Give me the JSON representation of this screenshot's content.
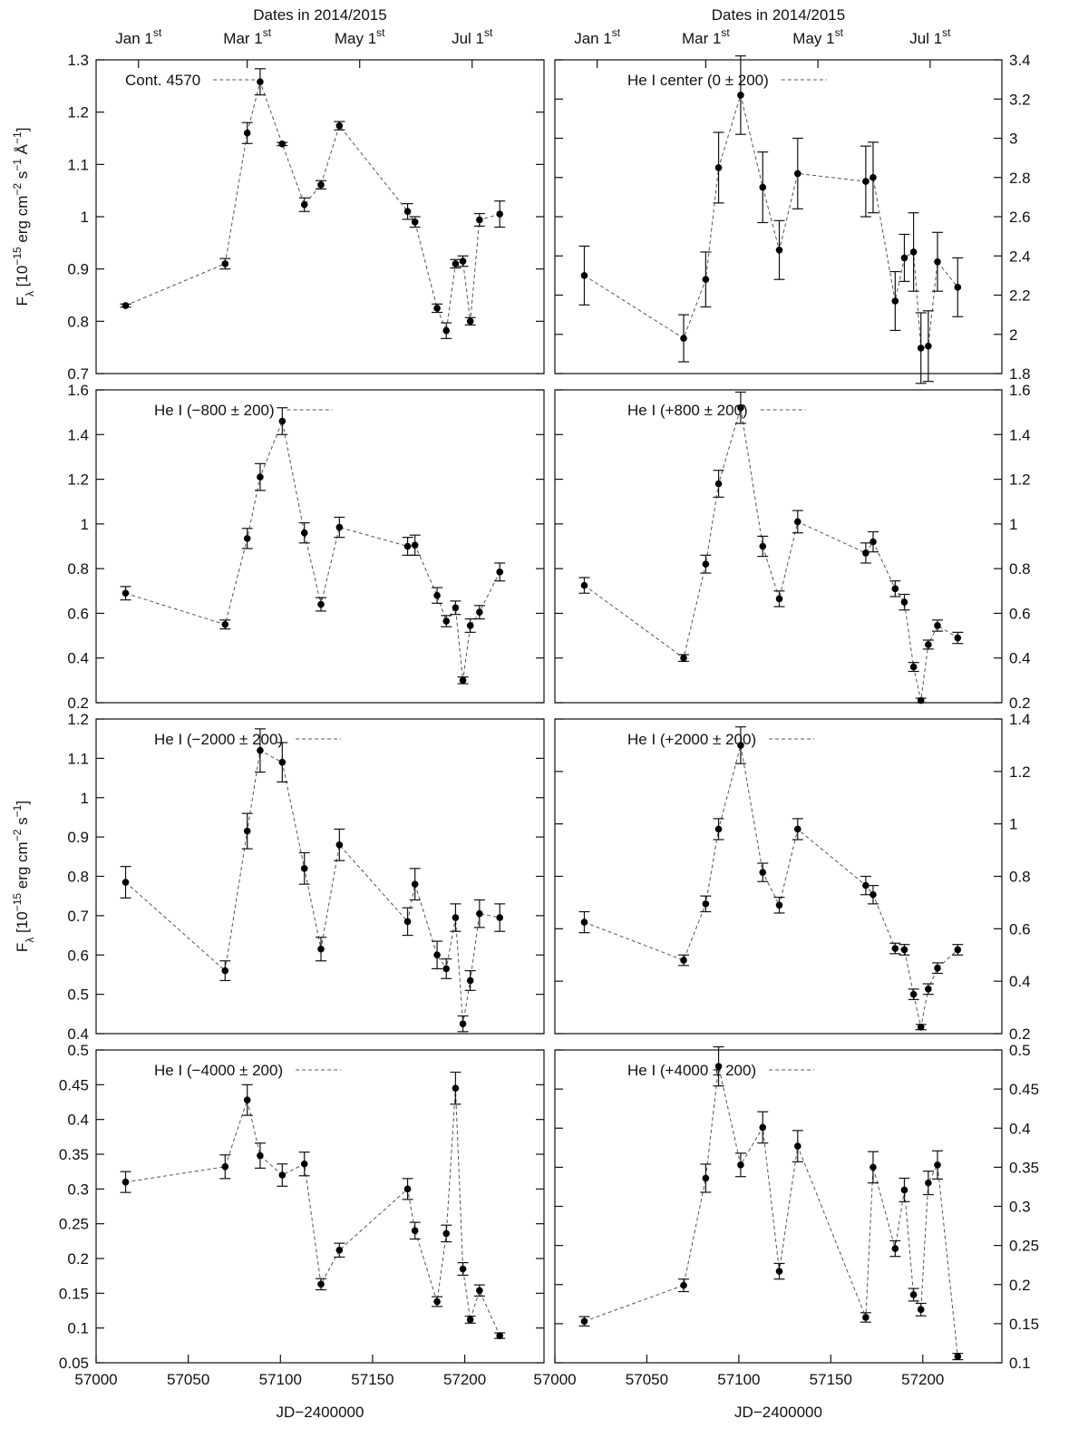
{
  "chart_data": [
    {
      "type": "line",
      "yaxis": "left",
      "xlim": [
        57000,
        57243
      ],
      "ylim": [
        0.7,
        1.3
      ],
      "yticks": [
        0.7,
        0.8,
        0.9,
        1,
        1.1,
        1.2,
        1.3
      ],
      "top_label": "Dates in 2014/2015",
      "top_ticks": [
        {
          "value": 57023,
          "label": "Jan 1",
          "sup": "st"
        },
        {
          "value": 57082,
          "label": "Mar 1",
          "sup": "st"
        },
        {
          "value": 57143,
          "label": "May 1",
          "sup": "st"
        },
        {
          "value": 57204,
          "label": "Jul 1",
          "sup": "st"
        }
      ],
      "ylabel": [
        {
          "text": "F"
        },
        {
          "text": "λ",
          "script": "sub"
        },
        {
          "text": " [10"
        },
        {
          "text": "−15",
          "script": "sup"
        },
        {
          "text": " erg cm"
        },
        {
          "text": "−2",
          "script": "sup"
        },
        {
          "text": " s"
        },
        {
          "text": "−1",
          "script": "sup"
        },
        {
          "text": " Å"
        },
        {
          "text": "−1",
          "script": "sup"
        },
        {
          "text": "]"
        }
      ],
      "x": [
        57016,
        57070,
        57082,
        57089,
        57101,
        57113,
        57122,
        57132,
        57169,
        57173,
        57185,
        57190,
        57195,
        57199,
        57203,
        57208,
        57219
      ],
      "series": [
        {
          "name": "Cont. 4570",
          "color": "#000000",
          "values": [
            0.83,
            0.91,
            1.16,
            1.258,
            1.139,
            1.023,
            1.061,
            1.174,
            1.01,
            0.99,
            0.825,
            0.782,
            0.91,
            0.915,
            0.8,
            0.994,
            1.005
          ],
          "errors": [
            0.003,
            0.01,
            0.02,
            0.025,
            0.003,
            0.013,
            0.008,
            0.008,
            0.015,
            0.01,
            0.008,
            0.015,
            0.008,
            0.01,
            0.007,
            0.012,
            0.025
          ]
        }
      ]
    },
    {
      "type": "line",
      "yaxis": "right",
      "xlim": [
        57000,
        57243
      ],
      "ylim": [
        1.8,
        3.4
      ],
      "yticks": [
        1.8,
        2,
        2.2,
        2.4,
        2.6,
        2.8,
        3,
        3.2,
        3.4
      ],
      "top_label": "Dates in 2014/2015",
      "top_ticks": [
        {
          "value": 57023,
          "label": "Jan 1",
          "sup": "st"
        },
        {
          "value": 57082,
          "label": "Mar 1",
          "sup": "st"
        },
        {
          "value": 57143,
          "label": "May 1",
          "sup": "st"
        },
        {
          "value": 57204,
          "label": "Jul 1",
          "sup": "st"
        }
      ],
      "x": [
        57016,
        57070,
        57082,
        57089,
        57101,
        57113,
        57122,
        57132,
        57169,
        57173,
        57185,
        57190,
        57195,
        57199,
        57203,
        57208,
        57219
      ],
      "series": [
        {
          "name": "He I center (0 ± 200)",
          "color": "#000000",
          "values": [
            2.3,
            1.98,
            2.28,
            2.85,
            3.22,
            2.75,
            2.43,
            2.82,
            2.78,
            2.8,
            2.17,
            2.39,
            2.42,
            1.93,
            1.94,
            2.37,
            2.24
          ],
          "errors": [
            0.15,
            0.12,
            0.14,
            0.18,
            0.2,
            0.18,
            0.15,
            0.18,
            0.18,
            0.18,
            0.15,
            0.12,
            0.2,
            0.18,
            0.18,
            0.15,
            0.15
          ]
        }
      ]
    },
    {
      "type": "line",
      "yaxis": "left",
      "xlim": [
        57000,
        57243
      ],
      "ylim": [
        0.2,
        1.6
      ],
      "yticks": [
        0.2,
        0.4,
        0.6,
        0.8,
        1,
        1.2,
        1.4,
        1.6
      ],
      "x": [
        57016,
        57070,
        57082,
        57089,
        57101,
        57113,
        57122,
        57132,
        57169,
        57173,
        57185,
        57190,
        57195,
        57199,
        57203,
        57208,
        57219
      ],
      "series": [
        {
          "name": "He I (−800 ± 200)",
          "color": "#000000",
          "values": [
            0.69,
            0.55,
            0.935,
            1.21,
            1.46,
            0.96,
            0.64,
            0.985,
            0.9,
            0.905,
            0.68,
            0.565,
            0.625,
            0.3,
            0.545,
            0.605,
            0.785
          ],
          "errors": [
            0.03,
            0.02,
            0.045,
            0.06,
            0.06,
            0.045,
            0.03,
            0.045,
            0.04,
            0.045,
            0.035,
            0.025,
            0.03,
            0.015,
            0.03,
            0.03,
            0.04
          ]
        }
      ]
    },
    {
      "type": "line",
      "yaxis": "right",
      "xlim": [
        57000,
        57243
      ],
      "ylim": [
        0.2,
        1.6
      ],
      "yticks": [
        0.2,
        0.4,
        0.6,
        0.8,
        1,
        1.2,
        1.4,
        1.6
      ],
      "x": [
        57016,
        57070,
        57082,
        57089,
        57101,
        57113,
        57122,
        57132,
        57169,
        57173,
        57185,
        57190,
        57195,
        57199,
        57203,
        57208,
        57219
      ],
      "series": [
        {
          "name": "He I (+800 ± 200)",
          "color": "#000000",
          "values": [
            0.725,
            0.4,
            0.82,
            1.18,
            1.52,
            0.9,
            0.665,
            1.01,
            0.87,
            0.92,
            0.71,
            0.65,
            0.36,
            0.21,
            0.46,
            0.545,
            0.49
          ],
          "errors": [
            0.035,
            0.015,
            0.04,
            0.06,
            0.07,
            0.045,
            0.035,
            0.05,
            0.045,
            0.045,
            0.035,
            0.035,
            0.02,
            0.01,
            0.02,
            0.025,
            0.025
          ]
        }
      ]
    },
    {
      "type": "line",
      "yaxis": "left",
      "xlim": [
        57000,
        57243
      ],
      "ylim": [
        0.4,
        1.2
      ],
      "yticks": [
        0.4,
        0.5,
        0.6,
        0.7,
        0.8,
        0.9,
        1,
        1.1,
        1.2
      ],
      "ylabel": [
        {
          "text": "F"
        },
        {
          "text": "λ",
          "script": "sub"
        },
        {
          "text": " [10"
        },
        {
          "text": "−15",
          "script": "sup"
        },
        {
          "text": " erg cm"
        },
        {
          "text": "−2",
          "script": "sup"
        },
        {
          "text": " s"
        },
        {
          "text": "−1",
          "script": "sup"
        },
        {
          "text": "]"
        }
      ],
      "x": [
        57016,
        57070,
        57082,
        57089,
        57101,
        57113,
        57122,
        57132,
        57169,
        57173,
        57185,
        57190,
        57195,
        57199,
        57203,
        57208,
        57219
      ],
      "series": [
        {
          "name": "He I (−2000 ± 200)",
          "color": "#000000",
          "values": [
            0.785,
            0.56,
            0.915,
            1.12,
            1.09,
            0.82,
            0.615,
            0.88,
            0.685,
            0.78,
            0.6,
            0.565,
            0.695,
            0.425,
            0.535,
            0.705,
            0.695
          ],
          "errors": [
            0.04,
            0.025,
            0.045,
            0.055,
            0.05,
            0.04,
            0.03,
            0.04,
            0.035,
            0.04,
            0.035,
            0.025,
            0.035,
            0.02,
            0.025,
            0.035,
            0.035
          ]
        }
      ]
    },
    {
      "type": "line",
      "yaxis": "right",
      "xlim": [
        57000,
        57243
      ],
      "ylim": [
        0.2,
        1.4
      ],
      "yticks": [
        0.2,
        0.4,
        0.6,
        0.8,
        1,
        1.2,
        1.4
      ],
      "x": [
        57016,
        57070,
        57082,
        57089,
        57101,
        57113,
        57122,
        57132,
        57169,
        57173,
        57185,
        57190,
        57195,
        57199,
        57203,
        57208,
        57219
      ],
      "series": [
        {
          "name": "He I (+2000 ± 200)",
          "color": "#000000",
          "values": [
            0.625,
            0.48,
            0.695,
            0.98,
            1.3,
            0.815,
            0.69,
            0.98,
            0.765,
            0.73,
            0.525,
            0.52,
            0.35,
            0.225,
            0.37,
            0.45,
            0.52
          ],
          "errors": [
            0.04,
            0.02,
            0.03,
            0.04,
            0.07,
            0.035,
            0.03,
            0.04,
            0.035,
            0.035,
            0.02,
            0.02,
            0.02,
            0.01,
            0.02,
            0.02,
            0.02
          ]
        }
      ]
    },
    {
      "type": "line",
      "yaxis": "left",
      "xlim": [
        57000,
        57243
      ],
      "ylim": [
        0.05,
        0.5
      ],
      "yticks": [
        0.05,
        0.1,
        0.15,
        0.2,
        0.25,
        0.3,
        0.35,
        0.4,
        0.45,
        0.5
      ],
      "xticks": [
        57000,
        57050,
        57100,
        57150,
        57200
      ],
      "xlabel": "JD−2400000",
      "x": [
        57016,
        57070,
        57082,
        57089,
        57101,
        57113,
        57122,
        57132,
        57169,
        57173,
        57185,
        57190,
        57195,
        57199,
        57203,
        57208,
        57219
      ],
      "series": [
        {
          "name": "He I (−4000 ± 200)",
          "color": "#000000",
          "values": [
            0.31,
            0.332,
            0.428,
            0.348,
            0.32,
            0.336,
            0.163,
            0.212,
            0.3,
            0.24,
            0.138,
            0.236,
            0.445,
            0.185,
            0.112,
            0.154,
            0.089
          ],
          "errors": [
            0.015,
            0.017,
            0.022,
            0.018,
            0.016,
            0.017,
            0.008,
            0.01,
            0.015,
            0.012,
            0.007,
            0.012,
            0.023,
            0.009,
            0.005,
            0.008,
            0.004
          ]
        }
      ]
    },
    {
      "type": "line",
      "yaxis": "right",
      "xlim": [
        57000,
        57243
      ],
      "ylim": [
        0.1,
        0.5
      ],
      "yticks": [
        0.1,
        0.15,
        0.2,
        0.25,
        0.3,
        0.35,
        0.4,
        0.45,
        0.5
      ],
      "xticks": [
        57000,
        57050,
        57100,
        57150,
        57200
      ],
      "xlabel": "JD−2400000",
      "x": [
        57016,
        57070,
        57082,
        57089,
        57101,
        57113,
        57122,
        57132,
        57169,
        57173,
        57185,
        57190,
        57195,
        57199,
        57203,
        57208,
        57219
      ],
      "series": [
        {
          "name": "He I (+4000 ± 200)",
          "color": "#000000",
          "values": [
            0.153,
            0.199,
            0.336,
            0.479,
            0.353,
            0.401,
            0.217,
            0.377,
            0.158,
            0.35,
            0.246,
            0.321,
            0.187,
            0.168,
            0.33,
            0.353,
            0.108
          ],
          "errors": [
            0.006,
            0.008,
            0.018,
            0.025,
            0.015,
            0.02,
            0.01,
            0.02,
            0.006,
            0.02,
            0.01,
            0.015,
            0.008,
            0.008,
            0.015,
            0.018,
            0.004
          ]
        }
      ]
    }
  ]
}
